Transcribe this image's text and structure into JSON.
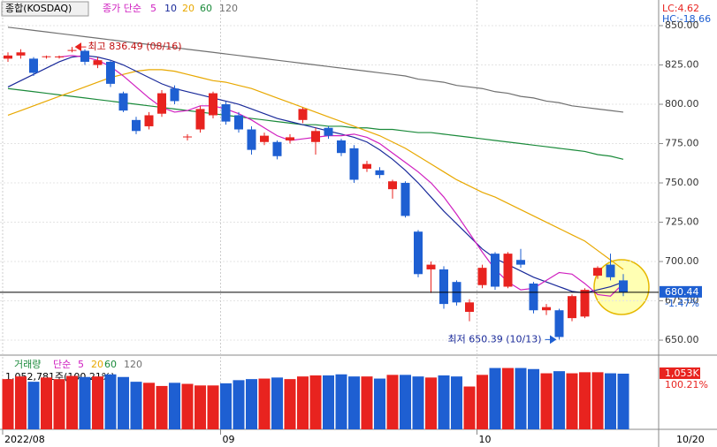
{
  "chart_data": {
    "type": "candlestick",
    "title": "종합(KOSDAQ)",
    "ma_label": "종가 단순",
    "lc": "LC:4.62",
    "hc": "HC:-18.66",
    "up_color": "#e8231f",
    "down_color": "#1e5fd2",
    "ylim": [
      641.6,
      866.3
    ],
    "yticks": [
      {
        "value": 850,
        "label": "850.00"
      },
      {
        "value": 825,
        "label": "825.00"
      },
      {
        "value": 800,
        "label": "800.00"
      },
      {
        "value": 775,
        "label": "775.00"
      },
      {
        "value": 750,
        "label": "750.00"
      },
      {
        "value": 725,
        "label": "725.00"
      },
      {
        "value": 700,
        "label": "700.00"
      },
      {
        "value": 675,
        "label": "675.00"
      },
      {
        "value": 650,
        "label": "650.00"
      }
    ],
    "grid": true,
    "open": [
      829,
      831,
      829,
      830,
      830,
      834,
      834,
      825,
      827,
      807,
      790,
      786,
      794,
      810,
      779,
      784,
      793,
      800,
      793,
      784,
      776,
      776,
      777,
      790,
      776,
      785,
      777,
      772,
      759,
      758,
      746,
      750,
      719,
      695,
      695,
      687,
      668,
      685,
      705,
      684,
      701,
      686,
      669,
      669,
      664,
      665,
      691,
      698,
      688
    ],
    "high": [
      833,
      835,
      830,
      831,
      831,
      836.49,
      835,
      830,
      828,
      808,
      792,
      795,
      809,
      812,
      781,
      799,
      808,
      802,
      795,
      786,
      782,
      777,
      781,
      798,
      785,
      786,
      778,
      774,
      764,
      760,
      752,
      751,
      720,
      700,
      697,
      688,
      676,
      698,
      706,
      706,
      708,
      687,
      673,
      670,
      679,
      683,
      697,
      705,
      692
    ],
    "low": [
      827,
      829,
      818,
      829,
      829,
      833,
      825,
      823,
      811,
      795,
      781,
      784,
      792,
      800,
      777,
      782,
      791,
      787,
      782,
      768,
      774,
      765,
      775,
      788,
      768,
      778,
      767,
      750,
      757,
      753,
      740,
      728,
      690,
      680,
      670,
      672,
      662,
      683,
      682,
      683,
      696,
      667,
      666,
      650.39,
      662,
      664,
      689,
      688,
      678
    ],
    "close": [
      831,
      833,
      820,
      830.5,
      830.4,
      834.5,
      827,
      828,
      813,
      796,
      783,
      793,
      807,
      802,
      779.5,
      797,
      807,
      789,
      784,
      771,
      780,
      767,
      779,
      797,
      783,
      780,
      769,
      752,
      762,
      755,
      751,
      729,
      692,
      698,
      673,
      674,
      674,
      696,
      684,
      705,
      698,
      669,
      671,
      652,
      678,
      682,
      696,
      690,
      680.44
    ],
    "ma": [
      {
        "name": "5",
        "color": "#d020c0",
        "values": [
          null,
          null,
          null,
          null,
          830,
          831,
          830,
          828,
          824,
          818,
          811,
          804,
          798,
          795,
          796,
          799,
          799,
          797,
          794,
          790,
          785,
          780,
          777,
          778,
          779,
          780,
          780,
          781,
          779,
          775,
          769,
          763,
          757,
          750,
          741,
          730,
          718,
          706,
          695,
          687,
          682,
          683,
          688,
          693,
          692,
          686,
          679,
          678,
          686
        ]
      },
      {
        "name": "10",
        "color": "#1a2a9a",
        "values": [
          811,
          815,
          819,
          823,
          827,
          830,
          831,
          830,
          828,
          825,
          821,
          817,
          813,
          810,
          808,
          806,
          804,
          802,
          800,
          797,
          794,
          791,
          789,
          787,
          785,
          783,
          781,
          779,
          776,
          771,
          765,
          758,
          750,
          741,
          732,
          724,
          716,
          708,
          702,
          698,
          694,
          690,
          687,
          684,
          681,
          680,
          682,
          684,
          687
        ]
      },
      {
        "name": "20",
        "color": "#e8a800",
        "values": [
          793,
          796,
          799,
          802,
          805,
          808,
          811,
          814,
          817,
          819,
          821,
          822,
          822,
          821,
          819,
          817,
          815,
          814,
          812,
          810,
          807,
          804,
          801,
          798,
          795,
          792,
          789,
          786,
          783,
          780,
          776,
          772,
          767,
          762,
          757,
          752,
          748,
          744,
          741,
          737,
          733,
          729,
          725,
          721,
          717,
          713,
          707,
          701,
          695
        ]
      },
      {
        "name": "60",
        "color": "#1a8a3a",
        "values": [
          810,
          809,
          808,
          807,
          806,
          805,
          804,
          803,
          802,
          801,
          800,
          799,
          798,
          797,
          796,
          795,
          794,
          793,
          792,
          791,
          790,
          789,
          788,
          787,
          787,
          786,
          786,
          785,
          785,
          784,
          784,
          783,
          782,
          782,
          781,
          780,
          779,
          778,
          777,
          776,
          775,
          774,
          773,
          772,
          771,
          770,
          768,
          767,
          765
        ]
      },
      {
        "name": "120",
        "color": "#707070",
        "values": [
          849,
          848,
          847,
          846,
          845,
          844,
          843,
          842,
          841,
          840,
          839,
          838,
          837,
          836,
          835,
          834,
          833,
          832,
          831,
          830,
          829,
          828,
          827,
          826,
          825,
          824,
          823,
          822,
          821,
          820,
          819,
          818,
          816,
          815,
          814,
          812,
          811,
          810,
          808,
          807,
          805,
          804,
          802,
          801,
          799,
          798,
          797,
          796,
          795
        ]
      }
    ],
    "high_note": "최고 836.49 (08/16)",
    "low_note": "최저 650.39 (10/13)",
    "current": 680.44,
    "current_label": "680.44",
    "change": "-1.47%",
    "volume": {
      "title": "거래량",
      "ma_label": "단순",
      "ma_names": [
        "5",
        "20",
        "60",
        "120"
      ],
      "info": "1,052,781주(100.21%)",
      "last_label": "1,053K",
      "ratio": "100.21%",
      "vlim": [
        0,
        1370
      ],
      "values": [
        950,
        1000,
        900,
        980,
        950,
        1010,
        990,
        1000,
        1040,
        990,
        900,
        880,
        820,
        880,
        860,
        830,
        830,
        870,
        930,
        950,
        960,
        980,
        950,
        1000,
        1020,
        1020,
        1040,
        1000,
        1000,
        960,
        1030,
        1030,
        1000,
        980,
        1020,
        1000,
        810,
        1030,
        1160,
        1160,
        1160,
        1140,
        1060,
        1100,
        1060,
        1080,
        1080,
        1060,
        1053
      ]
    },
    "x_labels": [
      {
        "value": 0,
        "label": "2022/08"
      },
      {
        "value": 17,
        "label": "09"
      },
      {
        "value": 37,
        "label": "10"
      }
    ],
    "last_date": "10/20"
  }
}
